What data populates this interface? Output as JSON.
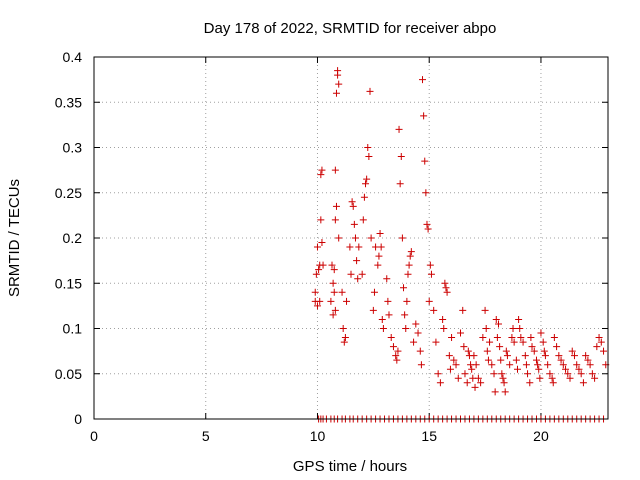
{
  "chart_data": {
    "type": "scatter",
    "title": "Day 178 of 2022, SRMTID for receiver abpo",
    "xlabel": "GPS time / hours",
    "ylabel": "SRMTID / TECUs",
    "xlim": [
      0,
      23
    ],
    "ylim": [
      0,
      0.4
    ],
    "grid": true,
    "marker": "+",
    "color": "#cc0000",
    "xticks": [
      0,
      5,
      10,
      15,
      20
    ],
    "xtick_labels": [
      "0",
      "5",
      "10",
      "15",
      "20"
    ],
    "yticks": [
      0,
      0.05,
      0.1,
      0.15,
      0.2,
      0.25,
      0.3,
      0.35,
      0.4
    ],
    "ytick_labels": [
      "0",
      "0.05",
      "0.1",
      "0.15",
      "0.2",
      "0.25",
      "0.3",
      "0.35",
      "0.4"
    ],
    "series": [
      {
        "name": "SRMTID",
        "points": [
          [
            9.9,
            0.13
          ],
          [
            9.9,
            0.14
          ],
          [
            9.95,
            0.16
          ],
          [
            10.0,
            0.19
          ],
          [
            10.05,
            0.165
          ],
          [
            10.1,
            0.17
          ],
          [
            10.15,
            0.27
          ],
          [
            10.2,
            0.275
          ],
          [
            10.15,
            0.22
          ],
          [
            10.1,
            0.13
          ],
          [
            10.2,
            0.195
          ],
          [
            10.25,
            0.17
          ],
          [
            10.0,
            0.125
          ],
          [
            10.6,
            0.13
          ],
          [
            10.65,
            0.17
          ],
          [
            10.7,
            0.15
          ],
          [
            10.75,
            0.165
          ],
          [
            10.8,
            0.22
          ],
          [
            10.85,
            0.235
          ],
          [
            10.8,
            0.275
          ],
          [
            10.9,
            0.38
          ],
          [
            10.9,
            0.385
          ],
          [
            10.95,
            0.37
          ],
          [
            10.85,
            0.36
          ],
          [
            10.7,
            0.115
          ],
          [
            10.75,
            0.14
          ],
          [
            10.8,
            0.12
          ],
          [
            10.95,
            0.2
          ],
          [
            11.1,
            0.14
          ],
          [
            11.15,
            0.1
          ],
          [
            11.2,
            0.085
          ],
          [
            11.25,
            0.09
          ],
          [
            11.3,
            0.13
          ],
          [
            11.45,
            0.19
          ],
          [
            11.5,
            0.16
          ],
          [
            11.55,
            0.24
          ],
          [
            11.6,
            0.235
          ],
          [
            11.65,
            0.215
          ],
          [
            11.7,
            0.2
          ],
          [
            11.75,
            0.175
          ],
          [
            11.8,
            0.155
          ],
          [
            11.85,
            0.19
          ],
          [
            12.0,
            0.16
          ],
          [
            12.05,
            0.22
          ],
          [
            12.1,
            0.245
          ],
          [
            12.15,
            0.26
          ],
          [
            12.2,
            0.265
          ],
          [
            12.25,
            0.3
          ],
          [
            12.3,
            0.29
          ],
          [
            12.35,
            0.362
          ],
          [
            12.4,
            0.2
          ],
          [
            12.5,
            0.12
          ],
          [
            12.55,
            0.14
          ],
          [
            12.6,
            0.19
          ],
          [
            12.7,
            0.17
          ],
          [
            12.75,
            0.18
          ],
          [
            12.8,
            0.205
          ],
          [
            12.85,
            0.19
          ],
          [
            12.9,
            0.11
          ],
          [
            12.95,
            0.1
          ],
          [
            13.1,
            0.155
          ],
          [
            13.15,
            0.13
          ],
          [
            13.2,
            0.115
          ],
          [
            13.3,
            0.09
          ],
          [
            13.4,
            0.08
          ],
          [
            13.5,
            0.07
          ],
          [
            13.55,
            0.065
          ],
          [
            13.6,
            0.075
          ],
          [
            13.7,
            0.26
          ],
          [
            13.65,
            0.32
          ],
          [
            13.75,
            0.29
          ],
          [
            13.8,
            0.2
          ],
          [
            13.85,
            0.145
          ],
          [
            13.9,
            0.115
          ],
          [
            13.95,
            0.1
          ],
          [
            14.0,
            0.13
          ],
          [
            14.05,
            0.16
          ],
          [
            14.1,
            0.17
          ],
          [
            14.15,
            0.18
          ],
          [
            14.2,
            0.185
          ],
          [
            14.3,
            0.085
          ],
          [
            14.4,
            0.105
          ],
          [
            14.5,
            0.095
          ],
          [
            14.6,
            0.075
          ],
          [
            14.65,
            0.06
          ],
          [
            14.7,
            0.375
          ],
          [
            14.75,
            0.335
          ],
          [
            14.8,
            0.285
          ],
          [
            14.85,
            0.25
          ],
          [
            14.9,
            0.215
          ],
          [
            14.95,
            0.21
          ],
          [
            15.0,
            0.13
          ],
          [
            15.05,
            0.17
          ],
          [
            15.1,
            0.16
          ],
          [
            15.2,
            0.12
          ],
          [
            15.3,
            0.085
          ],
          [
            15.4,
            0.05
          ],
          [
            15.5,
            0.04
          ],
          [
            15.6,
            0.11
          ],
          [
            15.65,
            0.1
          ],
          [
            15.7,
            0.15
          ],
          [
            15.75,
            0.145
          ],
          [
            15.8,
            0.14
          ],
          [
            15.9,
            0.07
          ],
          [
            15.95,
            0.055
          ],
          [
            16.0,
            0.09
          ],
          [
            16.1,
            0.065
          ],
          [
            16.2,
            0.06
          ],
          [
            16.3,
            0.045
          ],
          [
            16.4,
            0.095
          ],
          [
            16.5,
            0.12
          ],
          [
            16.55,
            0.08
          ],
          [
            16.6,
            0.05
          ],
          [
            16.7,
            0.04
          ],
          [
            16.75,
            0.075
          ],
          [
            16.8,
            0.07
          ],
          [
            16.85,
            0.06
          ],
          [
            16.9,
            0.055
          ],
          [
            16.95,
            0.045
          ],
          [
            17.0,
            0.07
          ],
          [
            17.05,
            0.035
          ],
          [
            17.1,
            0.06
          ],
          [
            17.2,
            0.045
          ],
          [
            17.3,
            0.04
          ],
          [
            17.4,
            0.09
          ],
          [
            17.5,
            0.12
          ],
          [
            17.55,
            0.1
          ],
          [
            17.6,
            0.075
          ],
          [
            17.65,
            0.065
          ],
          [
            17.7,
            0.085
          ],
          [
            17.8,
            0.06
          ],
          [
            17.9,
            0.05
          ],
          [
            17.95,
            0.03
          ],
          [
            18.0,
            0.11
          ],
          [
            18.05,
            0.09
          ],
          [
            18.1,
            0.105
          ],
          [
            18.15,
            0.08
          ],
          [
            18.2,
            0.065
          ],
          [
            18.25,
            0.05
          ],
          [
            18.3,
            0.045
          ],
          [
            18.35,
            0.04
          ],
          [
            18.4,
            0.03
          ],
          [
            18.45,
            0.075
          ],
          [
            18.5,
            0.07
          ],
          [
            18.6,
            0.06
          ],
          [
            18.7,
            0.09
          ],
          [
            18.75,
            0.1
          ],
          [
            18.8,
            0.085
          ],
          [
            18.9,
            0.065
          ],
          [
            18.95,
            0.055
          ],
          [
            19.0,
            0.11
          ],
          [
            19.05,
            0.1
          ],
          [
            19.1,
            0.09
          ],
          [
            19.2,
            0.085
          ],
          [
            19.3,
            0.07
          ],
          [
            19.35,
            0.06
          ],
          [
            19.4,
            0.05
          ],
          [
            19.5,
            0.04
          ],
          [
            19.55,
            0.09
          ],
          [
            19.6,
            0.08
          ],
          [
            19.7,
            0.075
          ],
          [
            19.8,
            0.065
          ],
          [
            19.85,
            0.06
          ],
          [
            19.9,
            0.055
          ],
          [
            19.95,
            0.045
          ],
          [
            20.0,
            0.095
          ],
          [
            20.1,
            0.085
          ],
          [
            20.15,
            0.075
          ],
          [
            20.2,
            0.07
          ],
          [
            20.3,
            0.06
          ],
          [
            20.4,
            0.05
          ],
          [
            20.5,
            0.045
          ],
          [
            20.55,
            0.04
          ],
          [
            20.6,
            0.09
          ],
          [
            20.7,
            0.08
          ],
          [
            20.8,
            0.07
          ],
          [
            20.9,
            0.065
          ],
          [
            21.0,
            0.06
          ],
          [
            21.1,
            0.055
          ],
          [
            21.2,
            0.05
          ],
          [
            21.3,
            0.045
          ],
          [
            21.4,
            0.075
          ],
          [
            21.5,
            0.07
          ],
          [
            21.6,
            0.06
          ],
          [
            21.7,
            0.055
          ],
          [
            21.8,
            0.05
          ],
          [
            21.9,
            0.04
          ],
          [
            22.0,
            0.07
          ],
          [
            22.1,
            0.065
          ],
          [
            22.2,
            0.06
          ],
          [
            22.3,
            0.05
          ],
          [
            22.4,
            0.045
          ],
          [
            22.5,
            0.08
          ],
          [
            22.6,
            0.09
          ],
          [
            22.7,
            0.085
          ],
          [
            22.8,
            0.075
          ],
          [
            22.9,
            0.06
          ],
          [
            10.05,
            0.0
          ],
          [
            10.15,
            0.0
          ],
          [
            10.25,
            0.0
          ],
          [
            10.4,
            0.0
          ],
          [
            10.6,
            0.0
          ],
          [
            10.75,
            0.0
          ],
          [
            10.9,
            0.0
          ],
          [
            11.1,
            0.0
          ],
          [
            11.25,
            0.0
          ],
          [
            11.45,
            0.0
          ],
          [
            11.6,
            0.0
          ],
          [
            11.8,
            0.0
          ],
          [
            12.0,
            0.0
          ],
          [
            12.2,
            0.0
          ],
          [
            12.4,
            0.0
          ],
          [
            12.6,
            0.0
          ],
          [
            12.8,
            0.0
          ],
          [
            13.0,
            0.0
          ],
          [
            13.2,
            0.0
          ],
          [
            13.4,
            0.0
          ],
          [
            13.6,
            0.0
          ],
          [
            13.8,
            0.0
          ],
          [
            14.0,
            0.0
          ],
          [
            14.2,
            0.0
          ],
          [
            14.4,
            0.0
          ],
          [
            14.6,
            0.0
          ],
          [
            14.8,
            0.0
          ],
          [
            15.0,
            0.0
          ],
          [
            15.2,
            0.0
          ],
          [
            15.4,
            0.0
          ],
          [
            15.6,
            0.0
          ],
          [
            15.8,
            0.0
          ],
          [
            16.0,
            0.0
          ],
          [
            16.2,
            0.0
          ],
          [
            16.4,
            0.0
          ],
          [
            16.6,
            0.0
          ],
          [
            16.8,
            0.0
          ],
          [
            17.0,
            0.0
          ],
          [
            17.2,
            0.0
          ],
          [
            17.4,
            0.0
          ],
          [
            17.6,
            0.0
          ],
          [
            17.8,
            0.0
          ],
          [
            18.0,
            0.0
          ],
          [
            18.2,
            0.0
          ],
          [
            18.4,
            0.0
          ],
          [
            18.6,
            0.0
          ],
          [
            18.8,
            0.0
          ],
          [
            19.0,
            0.0
          ],
          [
            19.2,
            0.0
          ],
          [
            19.4,
            0.0
          ],
          [
            19.6,
            0.0
          ],
          [
            19.8,
            0.0
          ],
          [
            20.0,
            0.0
          ],
          [
            20.2,
            0.0
          ],
          [
            20.4,
            0.0
          ],
          [
            20.6,
            0.0
          ],
          [
            20.8,
            0.0
          ],
          [
            21.0,
            0.0
          ],
          [
            21.2,
            0.0
          ],
          [
            21.4,
            0.0
          ],
          [
            21.6,
            0.0
          ],
          [
            21.8,
            0.0
          ],
          [
            22.0,
            0.0
          ],
          [
            22.2,
            0.0
          ],
          [
            22.4,
            0.0
          ],
          [
            22.6,
            0.0
          ],
          [
            22.8,
            0.0
          ]
        ]
      }
    ]
  }
}
